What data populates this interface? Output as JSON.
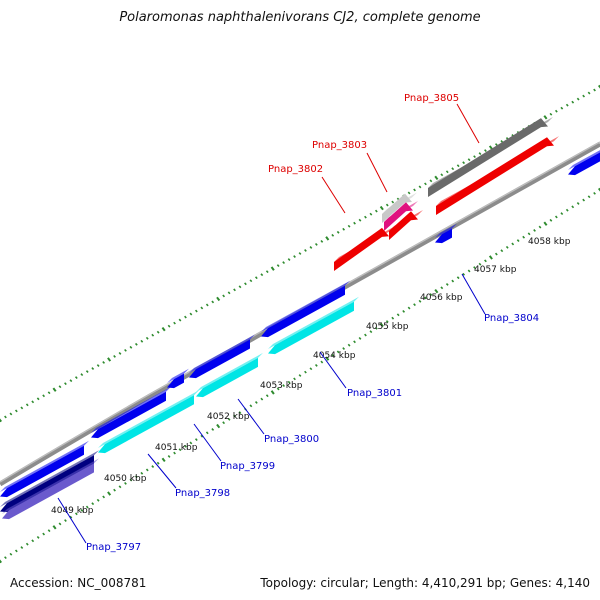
{
  "title": "Polaromonas naphthalenivorans CJ2, complete genome",
  "footer": {
    "accession": "Accession: NC_008781",
    "summary": "Topology: circular; Length: 4,410,291 bp; Genes: 4,140"
  },
  "colors": {
    "backbone": "#8c8c8c",
    "tick_dots": "#2e8b2e",
    "reverse_label": "#0000cc",
    "forward_label": "#dd0000",
    "blue": "#0000ee",
    "cyan": "#00e5e5",
    "red": "#ee0000",
    "gray": "#6a6a6a",
    "navy": "#000080",
    "slate": "#6a5acd",
    "magenta": "#e0117f",
    "light_gray": "#c8c8c8"
  },
  "axis": {
    "unit": "kbp",
    "ticks": [
      "4049 kbp",
      "4050 kbp",
      "4051 kbp",
      "4052 kbp",
      "4053 kbp",
      "4054 kbp",
      "4055 kbp",
      "4056 kbp",
      "4057 kbp",
      "4058 kbp"
    ]
  },
  "genes": {
    "reverse": [
      "Pnap_3797",
      "Pnap_3798",
      "Pnap_3799",
      "Pnap_3800",
      "Pnap_3801",
      "Pnap_3804"
    ],
    "forward": [
      "Pnap_3802",
      "Pnap_3803",
      "Pnap_3805"
    ]
  }
}
